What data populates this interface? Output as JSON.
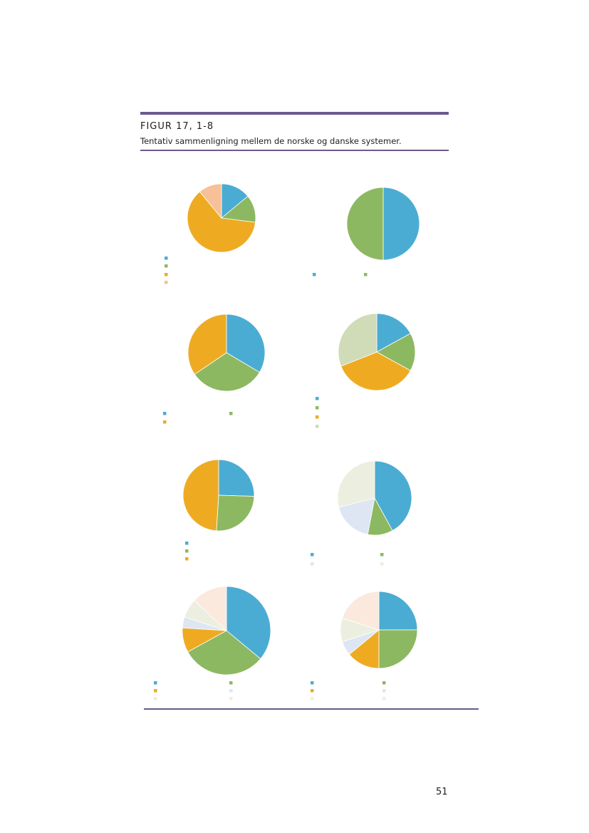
{
  "figure": {
    "label": "FIGUR 17, 1-8",
    "title": "Tentativ sammenligning mellem de norske og danske systemer.",
    "accent_color": "#6a5a8e"
  },
  "page_number": "51",
  "colors": {
    "blue": "#4bacd3",
    "green": "#8cb862",
    "orange": "#eeab22",
    "peach": "#f7c096",
    "sage": "#d0dbb8",
    "light_blue": "#dde6f2",
    "cream": "#ecefdf",
    "light_peach": "#fbe9dd"
  },
  "chart_data": [
    {
      "type": "pie",
      "values": [
        14,
        13,
        62,
        11
      ],
      "colors": [
        "blue",
        "green",
        "orange",
        "peach"
      ]
    },
    {
      "type": "pie",
      "values": [
        50,
        50
      ],
      "colors": [
        "blue",
        "green"
      ]
    },
    {
      "type": "pie",
      "values": [
        33.5,
        32,
        34.5
      ],
      "colors": [
        "blue",
        "green",
        "orange"
      ]
    },
    {
      "type": "pie",
      "values": [
        17,
        16,
        36,
        31
      ],
      "colors": [
        "blue",
        "green",
        "orange",
        "sage"
      ]
    },
    {
      "type": "pie",
      "values": [
        25.5,
        25.5,
        49
      ],
      "colors": [
        "blue",
        "green",
        "orange"
      ]
    },
    {
      "type": "pie",
      "values": [
        42,
        11,
        18,
        29
      ],
      "colors": [
        "blue",
        "green",
        "light_blue",
        "cream"
      ]
    },
    {
      "type": "pie",
      "values": [
        36,
        31,
        9,
        4,
        7,
        13
      ],
      "colors": [
        "blue",
        "green",
        "orange",
        "light_blue",
        "cream",
        "light_peach"
      ]
    },
    {
      "type": "pie",
      "values": [
        25,
        25,
        14,
        6,
        10,
        20
      ],
      "colors": [
        "blue",
        "green",
        "orange",
        "light_blue",
        "cream",
        "light_peach"
      ]
    }
  ]
}
